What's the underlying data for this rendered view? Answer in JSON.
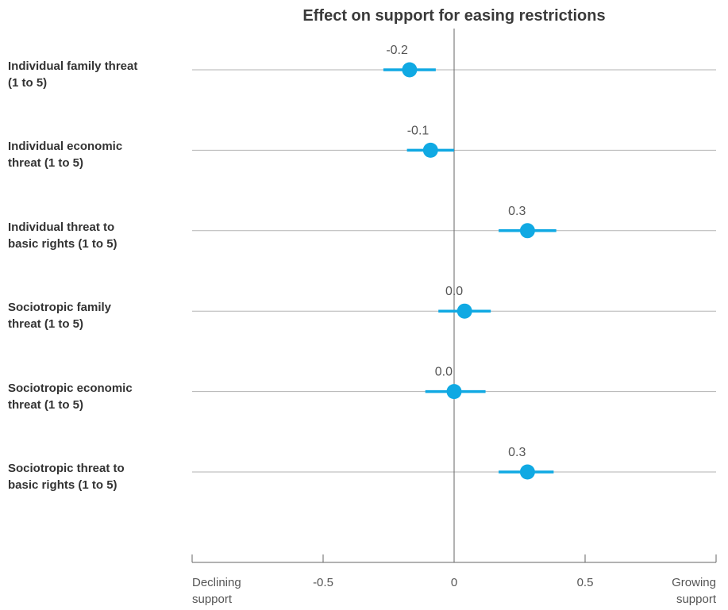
{
  "chart_data": {
    "type": "scatter",
    "title": "Effect on support for easing restrictions",
    "categories": [
      "Individual family threat (1 to 5)",
      "Individual economic threat (1 to 5)",
      "Individual threat to basic rights (1 to 5)",
      "Sociotropic family threat (1 to 5)",
      "Sociotropic economic threat (1 to 5)",
      "Sociotropic threat to basic rights (1 to 5)"
    ],
    "category_lines": [
      [
        "Individual family threat",
        "(1 to 5)"
      ],
      [
        "Individual economic",
        "threat (1 to 5)"
      ],
      [
        "Individual threat to",
        "basic rights (1 to 5)"
      ],
      [
        "Sociotropic family",
        "threat (1 to 5)"
      ],
      [
        "Sociotropic economic",
        "threat (1 to 5)"
      ],
      [
        "Sociotropic threat to",
        "basic rights (1 to 5)"
      ]
    ],
    "values": [
      -0.17,
      -0.09,
      0.28,
      0.04,
      0.0,
      0.28
    ],
    "ci_low": [
      -0.27,
      -0.18,
      0.17,
      -0.06,
      -0.11,
      0.17
    ],
    "ci_high": [
      -0.07,
      0.0,
      0.39,
      0.14,
      0.12,
      0.38
    ],
    "data_labels": [
      "-0.2",
      "-0.1",
      "0.3",
      "0.0",
      "0.0",
      "0.3"
    ],
    "xlim": [
      -1,
      1
    ],
    "x_ticks": [
      {
        "value": -1,
        "label": "Declining\nsupport",
        "align": "start"
      },
      {
        "value": -0.5,
        "label": "-0.5",
        "align": "middle"
      },
      {
        "value": 0,
        "label": "0",
        "align": "middle"
      },
      {
        "value": 0.5,
        "label": "0.5",
        "align": "middle"
      },
      {
        "value": 1,
        "label": "Growing\nsupport",
        "align": "end"
      }
    ],
    "colors": {
      "point": "#10a9e3",
      "gridline": "#b3b3b3",
      "axis": "#666666",
      "text": "#555555"
    },
    "grid": true
  }
}
